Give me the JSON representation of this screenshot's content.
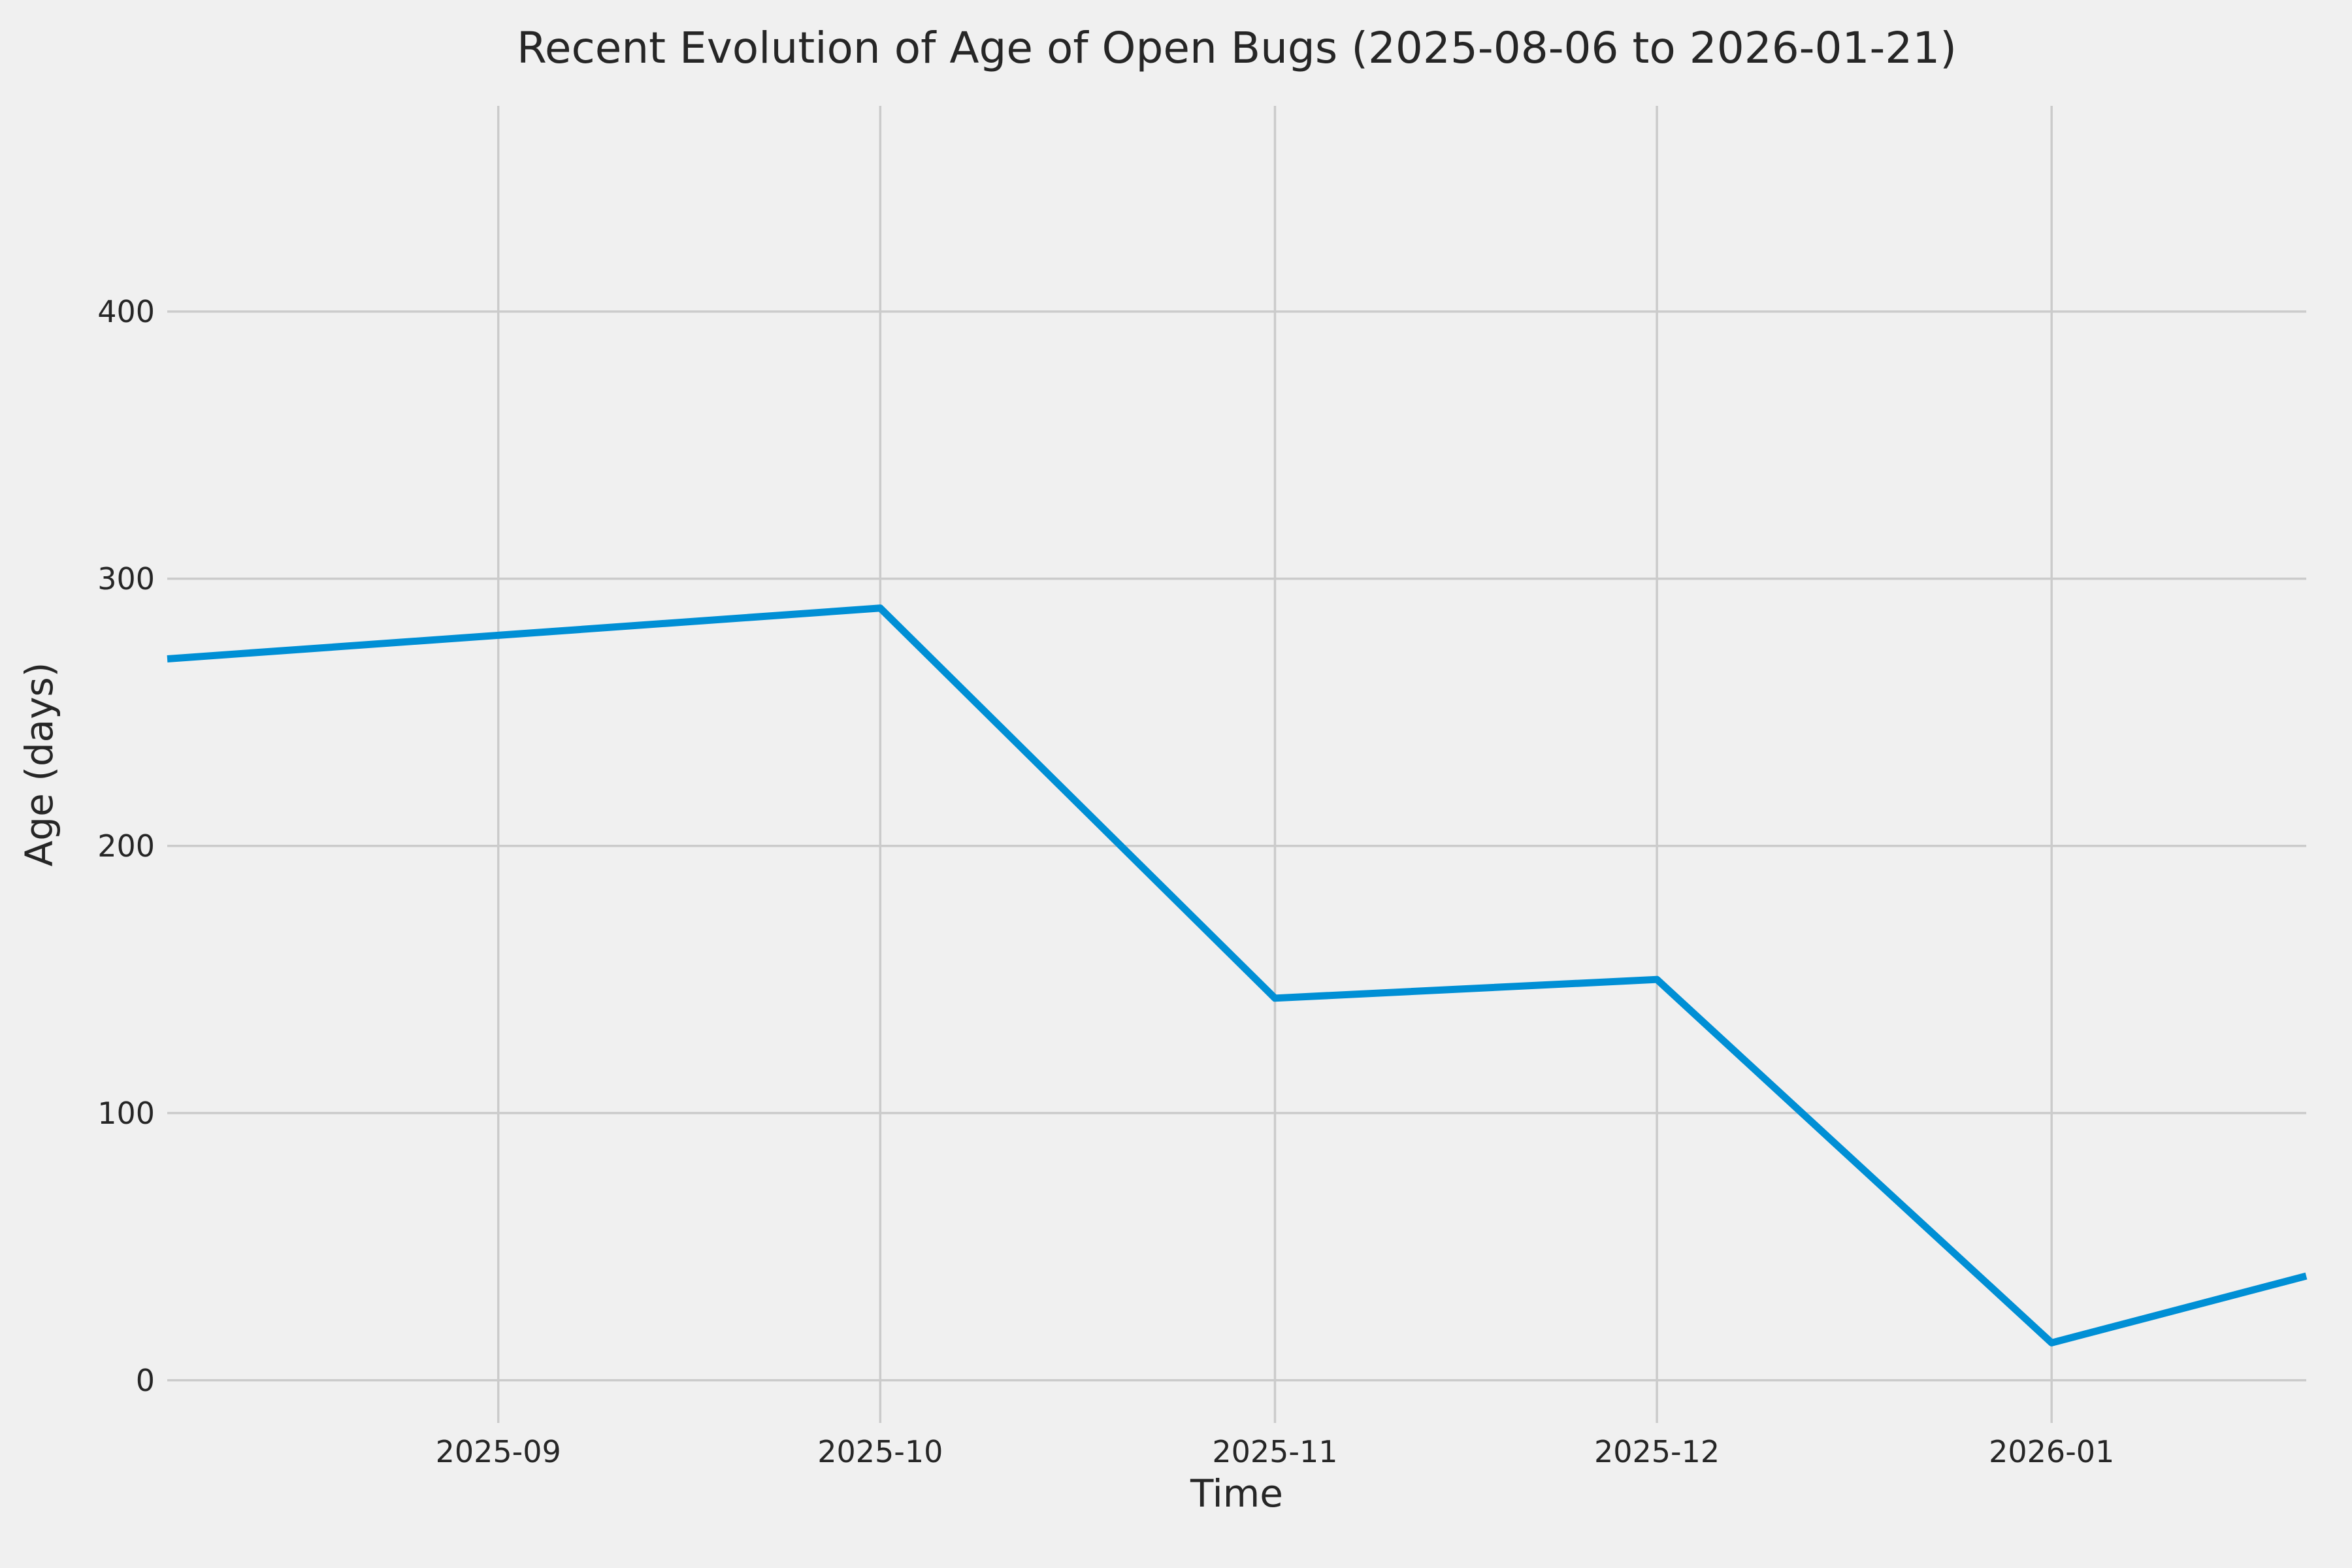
{
  "chart_data": {
    "type": "line",
    "title": "Recent Evolution of Age of Open Bugs (2025-08-06 to 2026-01-21)",
    "xlabel": "Time",
    "ylabel": "Age (days)",
    "grid": true,
    "legend_position": "none",
    "x_tick_labels": [
      "2025-09",
      "2025-10",
      "2025-11",
      "2025-12",
      "2026-01"
    ],
    "x_tick_days": [
      26,
      56,
      87,
      117,
      148
    ],
    "y_ticks": [
      0,
      100,
      200,
      300,
      400
    ],
    "xlim_days": [
      0,
      168
    ],
    "ylim": [
      -16,
      477
    ],
    "series": [
      {
        "name": "age-of-open-bugs",
        "dates": [
          "2025-08-06",
          "2025-10-01",
          "2025-11-01",
          "2025-12-01",
          "2026-01-01",
          "2026-01-21"
        ],
        "days": [
          0,
          56,
          87,
          117,
          148,
          168
        ],
        "values": [
          270,
          289,
          143,
          150,
          14,
          39
        ]
      }
    ],
    "colors": {
      "line": "#008fd5",
      "grid": "#cbcbcb",
      "background": "#f0f0f0",
      "text": "#262626"
    }
  }
}
